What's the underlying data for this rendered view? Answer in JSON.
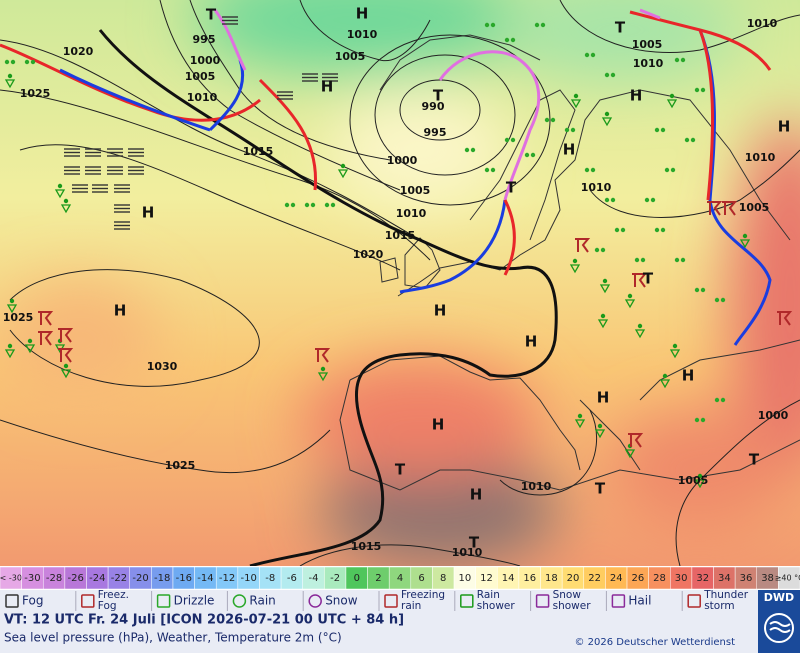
{
  "map": {
    "pressure_labels": [
      1020,
      1025,
      995,
      1000,
      1005,
      1010,
      1015,
      1010,
      1005,
      990,
      995,
      1000,
      1005,
      1010,
      1015,
      1020,
      1010,
      1010,
      1005,
      1010,
      1010,
      1005,
      1025,
      1030,
      1025,
      1000,
      1005,
      1010,
      1015,
      1010
    ],
    "high_labels": [
      "H",
      "H",
      "H",
      "H",
      "H",
      "H",
      "H",
      "H",
      "H",
      "H",
      "H",
      "H",
      "H"
    ],
    "low_labels": [
      "T",
      "T",
      "T",
      "T",
      "T",
      "T",
      "T",
      "T",
      "T"
    ]
  },
  "colorbar": [
    {
      "label": "< -30",
      "color": "#e6a8e6"
    },
    {
      "label": "-30",
      "color": "#d68fe0"
    },
    {
      "label": "-28",
      "color": "#c983dc"
    },
    {
      "label": "-26",
      "color": "#b877d8"
    },
    {
      "label": "-24",
      "color": "#a878e0"
    },
    {
      "label": "-22",
      "color": "#9882e6"
    },
    {
      "label": "-20",
      "color": "#868fea"
    },
    {
      "label": "-18",
      "color": "#779cee"
    },
    {
      "label": "-16",
      "color": "#6eaaf2"
    },
    {
      "label": "-14",
      "color": "#74b9f5"
    },
    {
      "label": "-12",
      "color": "#83c8f8"
    },
    {
      "label": "-10",
      "color": "#94d6f9"
    },
    {
      "label": "-8",
      "color": "#a5e2f6"
    },
    {
      "label": "-6",
      "color": "#b3ebef"
    },
    {
      "label": "-4",
      "color": "#bef0df"
    },
    {
      "label": "-2",
      "color": "#a9eabd"
    },
    {
      "label": "0",
      "color": "#4fc65c"
    },
    {
      "label": "2",
      "color": "#6ecd6c"
    },
    {
      "label": "4",
      "color": "#8fd77e"
    },
    {
      "label": "6",
      "color": "#aedf8e"
    },
    {
      "label": "8",
      "color": "#cde9a0"
    },
    {
      "label": "10",
      "color": "#fdfde6"
    },
    {
      "label": "12",
      "color": "#fffbd0"
    },
    {
      "label": "14",
      "color": "#fff5b3"
    },
    {
      "label": "16",
      "color": "#ffef9f"
    },
    {
      "label": "18",
      "color": "#ffe78c"
    },
    {
      "label": "20",
      "color": "#ffdc72"
    },
    {
      "label": "22",
      "color": "#ffcd60"
    },
    {
      "label": "24",
      "color": "#ffb954"
    },
    {
      "label": "26",
      "color": "#fca655"
    },
    {
      "label": "28",
      "color": "#f7905f"
    },
    {
      "label": "30",
      "color": "#ef7563"
    },
    {
      "label": "32",
      "color": "#e66566"
    },
    {
      "label": "34",
      "color": "#dd7268"
    },
    {
      "label": "36",
      "color": "#cf8273"
    },
    {
      "label": "38",
      "color": "#b98a82"
    },
    {
      "label": "≥40 °C",
      "color": "#dcdcdc"
    }
  ],
  "legend": [
    {
      "lines": [
        "Fog"
      ]
    },
    {
      "lines": [
        "Freez.",
        "Fog"
      ]
    },
    {
      "lines": [
        "Drizzle"
      ]
    },
    {
      "lines": [
        "Rain"
      ]
    },
    {
      "lines": [
        "Snow"
      ]
    },
    {
      "lines": [
        "Freezing",
        "rain"
      ]
    },
    {
      "lines": [
        "Rain",
        "shower"
      ]
    },
    {
      "lines": [
        "Snow",
        "shower"
      ]
    },
    {
      "lines": [
        "Hail"
      ]
    },
    {
      "lines": [
        "Thunder",
        "storm"
      ]
    }
  ],
  "footer": {
    "valid_time": "VT: 12 UTC Fr.  24 Juli [ICON 2026-07-21  00 UTC + 84 h]",
    "description": "Sea level pressure (hPa), Weather, Temperature 2m (°C)",
    "copyright": "© 2026 Deutscher Wetterdienst",
    "logo": "DWD"
  }
}
